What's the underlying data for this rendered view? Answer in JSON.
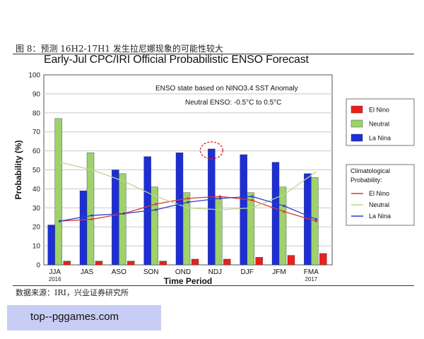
{
  "caption": "图 8：预测 16H2-17H1 发生拉尼娜现象的可能性较大",
  "source": "数据来源：IRI，兴业证券研究所",
  "site": "top--pggames.com",
  "chart_data": {
    "type": "bar",
    "title": "Early-Jul CPC/IRI Official Probabilistic ENSO Forecast",
    "xlabel": "Time Period",
    "ylabel": "Probability (%)",
    "ylim": [
      0,
      100
    ],
    "yticks": [
      "0",
      "10",
      "20",
      "30",
      "40",
      "50",
      "60",
      "70",
      "80",
      "90",
      "100"
    ],
    "categories": [
      "JJA",
      "JAS",
      "ASO",
      "SON",
      "OND",
      "NDJ",
      "DJF",
      "JFM",
      "FMA"
    ],
    "year_labels": [
      {
        "category": "JJA",
        "text": "2016"
      },
      {
        "category": "FMA",
        "text": "2017"
      }
    ],
    "notes": [
      "ENSO state based on NINO3.4 SST Anomaly",
      "Neutral ENSO: -0.5°C to 0.5°C"
    ],
    "grid": true,
    "legend_position": "right",
    "series": [
      {
        "name": "El Nino",
        "color": "#e8201f",
        "values": [
          2,
          2,
          2,
          2,
          3,
          3,
          4,
          5,
          6
        ]
      },
      {
        "name": "Neutral",
        "color": "#9ed26a",
        "values": [
          77,
          59,
          48,
          41,
          38,
          36,
          38,
          41,
          46
        ]
      },
      {
        "name": "La Nina",
        "color": "#1d2ed8",
        "values": [
          21,
          39,
          50,
          57,
          59,
          61,
          58,
          54,
          48
        ]
      }
    ],
    "climatology_title": "Climatological Probability:",
    "climatology": [
      {
        "name": "El Nino",
        "color": "#d93a2e",
        "values": [
          23,
          24,
          27,
          32,
          35,
          36,
          34,
          28,
          23
        ]
      },
      {
        "name": "Neutral",
        "color": "#b8d88a",
        "values": [
          54,
          50,
          44,
          36,
          30,
          29,
          30,
          37,
          49
        ]
      },
      {
        "name": "La Nina",
        "color": "#2b3fd0",
        "values": [
          23,
          26,
          27,
          29,
          33,
          35,
          36,
          31,
          24
        ]
      }
    ],
    "highlight": {
      "category": "NDJ",
      "series": "La Nina",
      "color": "#d22"
    }
  }
}
